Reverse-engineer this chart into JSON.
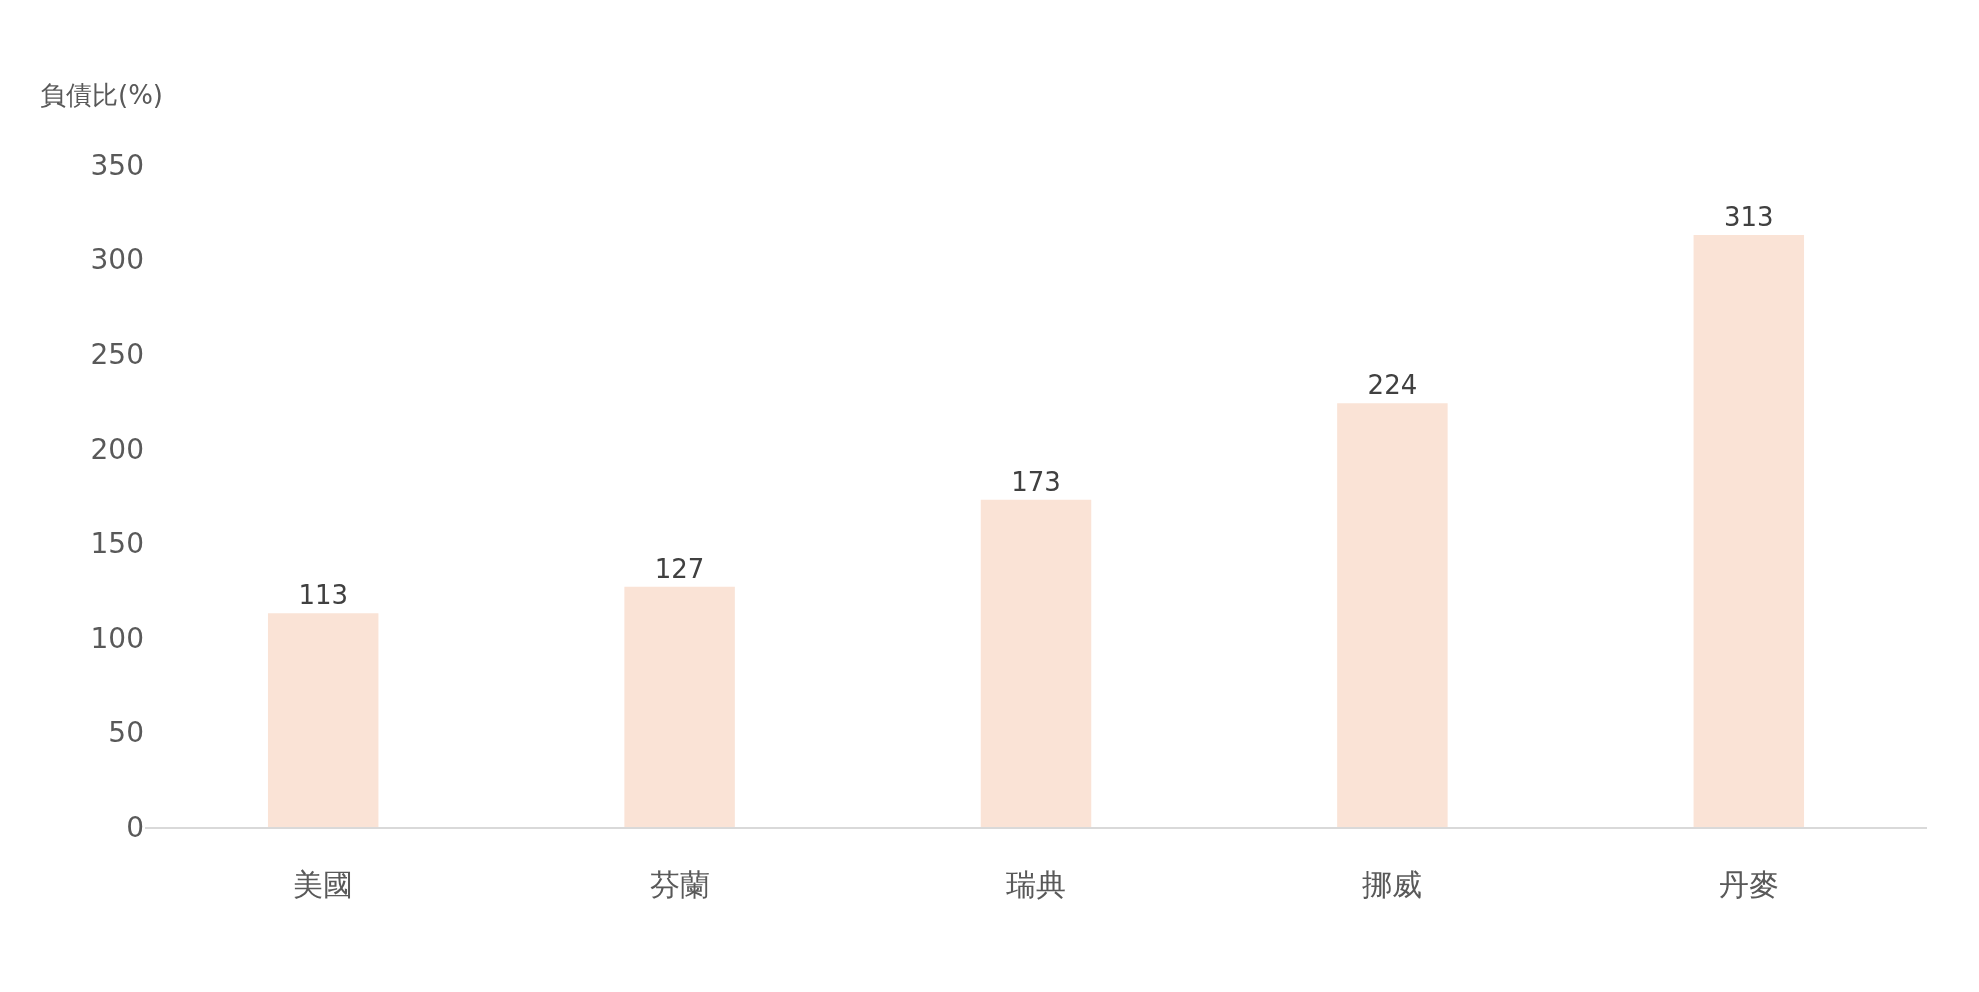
{
  "chart_data": {
    "type": "bar",
    "ylabel": "負債比(%)",
    "categories": [
      "美國",
      "芬蘭",
      "瑞典",
      "挪威",
      "丹麥"
    ],
    "values": [
      113,
      127,
      173,
      224,
      313
    ],
    "color": "#fae3d6",
    "data_labels": true,
    "ylim": [
      0,
      350
    ],
    "yticks": [
      0,
      50,
      100,
      150,
      200,
      250,
      300,
      350
    ],
    "grid": false,
    "legend": false
  }
}
